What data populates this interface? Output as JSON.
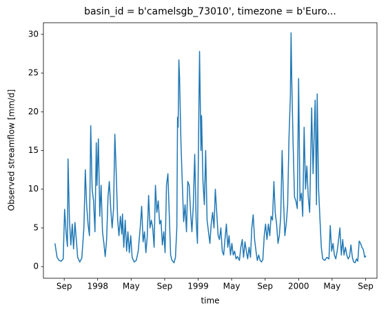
{
  "chart_data": {
    "type": "line",
    "title": "basin_id = b'camelsgb_73010', timezone = b'Euro...",
    "x_label": "time",
    "y_label": "Observed streamflow [mm/d]",
    "color": "#1f77b4",
    "xlim": [
      1997.46,
      2000.78
    ],
    "ylim": [
      -1.5,
      31.5
    ],
    "xticks": [
      {
        "value": 1997.667,
        "label": "Sep"
      },
      {
        "value": 1998,
        "label": "1998"
      },
      {
        "value": 1998.333,
        "label": "May"
      },
      {
        "value": 1998.667,
        "label": "Sep"
      },
      {
        "value": 1999,
        "label": "1999"
      },
      {
        "value": 1999.333,
        "label": "May"
      },
      {
        "value": 1999.667,
        "label": "Sep"
      },
      {
        "value": 2000,
        "label": "2000"
      },
      {
        "value": 2000.333,
        "label": "May"
      },
      {
        "value": 2000.667,
        "label": "Sep"
      }
    ],
    "yticks": [
      0,
      5,
      10,
      15,
      20,
      25,
      30
    ],
    "x": [
      1997.575,
      1997.596,
      1997.616,
      1997.637,
      1997.657,
      1997.671,
      1997.685,
      1997.699,
      1997.705,
      1997.719,
      1997.733,
      1997.747,
      1997.76,
      1997.774,
      1997.788,
      1997.801,
      1997.822,
      1997.842,
      1997.863,
      1997.877,
      1997.89,
      1997.904,
      1997.918,
      1997.931,
      1997.945,
      1997.959,
      1997.973,
      1997.986,
      1997.993,
      1998.007,
      1998.021,
      1998.034,
      1998.048,
      1998.062,
      1998.075,
      1998.089,
      1998.103,
      1998.116,
      1998.13,
      1998.144,
      1998.158,
      1998.171,
      1998.185,
      1998.199,
      1998.212,
      1998.226,
      1998.24,
      1998.247,
      1998.26,
      1998.274,
      1998.288,
      1998.301,
      1998.315,
      1998.329,
      1998.343,
      1998.363,
      1998.384,
      1998.404,
      1998.425,
      1998.438,
      1998.452,
      1998.466,
      1998.48,
      1998.493,
      1998.507,
      1998.521,
      1998.534,
      1998.548,
      1998.562,
      1998.575,
      1998.589,
      1998.603,
      1998.617,
      1998.63,
      1998.644,
      1998.658,
      1998.671,
      1998.685,
      1998.699,
      1998.712,
      1998.726,
      1998.74,
      1998.76,
      1998.774,
      1998.788,
      1998.795,
      1998.801,
      1998.808,
      1998.815,
      1998.829,
      1998.843,
      1998.856,
      1998.87,
      1998.884,
      1998.897,
      1998.911,
      1998.925,
      1998.938,
      1998.952,
      1998.966,
      1998.98,
      1998.993,
      1999.007,
      1999.014,
      1999.028,
      1999.034,
      1999.048,
      1999.062,
      1999.075,
      1999.089,
      1999.103,
      1999.117,
      1999.13,
      1999.144,
      1999.158,
      1999.171,
      1999.185,
      1999.199,
      1999.212,
      1999.226,
      1999.24,
      1999.254,
      1999.267,
      1999.281,
      1999.295,
      1999.308,
      1999.322,
      1999.336,
      1999.349,
      1999.363,
      1999.377,
      1999.391,
      1999.411,
      1999.425,
      1999.439,
      1999.452,
      1999.466,
      1999.48,
      1999.493,
      1999.507,
      1999.521,
      1999.534,
      1999.548,
      1999.562,
      1999.576,
      1999.589,
      1999.603,
      1999.617,
      1999.63,
      1999.644,
      1999.658,
      1999.671,
      1999.685,
      1999.699,
      1999.713,
      1999.726,
      1999.74,
      1999.754,
      1999.767,
      1999.781,
      1999.795,
      1999.808,
      1999.822,
      1999.836,
      1999.85,
      1999.863,
      1999.877,
      1999.891,
      1999.904,
      1999.918,
      1999.925,
      1999.932,
      1999.945,
      1999.959,
      1999.973,
      1999.987,
      2000.0,
      2000.014,
      2000.028,
      2000.041,
      2000.055,
      2000.069,
      2000.082,
      2000.096,
      2000.11,
      2000.124,
      2000.13,
      2000.144,
      2000.158,
      2000.165,
      2000.178,
      2000.185,
      2000.199,
      2000.213,
      2000.226,
      2000.24,
      2000.261,
      2000.281,
      2000.302,
      2000.315,
      2000.329,
      2000.343,
      2000.356,
      2000.37,
      2000.384,
      2000.398,
      2000.411,
      2000.425,
      2000.439,
      2000.452,
      2000.466,
      2000.48,
      2000.493,
      2000.507,
      2000.521,
      2000.535,
      2000.548,
      2000.562,
      2000.576,
      2000.589,
      2000.603,
      2000.617,
      2000.63,
      2000.644,
      2000.658,
      2000.671
    ],
    "values": [
      3.0,
      1.2,
      0.8,
      0.7,
      1.0,
      7.4,
      4.5,
      2.6,
      13.9,
      6.0,
      2.8,
      5.5,
      2.3,
      5.7,
      3.4,
      1.2,
      0.6,
      1.1,
      5.0,
      12.5,
      8.0,
      5.5,
      4.0,
      18.2,
      10.0,
      8.5,
      4.5,
      16.0,
      10.5,
      16.5,
      6.5,
      10.5,
      4.5,
      3.0,
      1.3,
      3.5,
      9.0,
      11.0,
      7.5,
      5.0,
      7.5,
      17.1,
      12.0,
      6.0,
      4.0,
      6.5,
      4.2,
      6.8,
      2.5,
      6.0,
      2.0,
      4.5,
      1.8,
      4.0,
      1.2,
      0.6,
      0.8,
      2.0,
      5.3,
      7.8,
      3.2,
      4.5,
      1.8,
      3.8,
      9.2,
      5.0,
      6.0,
      5.0,
      2.5,
      10.5,
      7.0,
      8.5,
      5.5,
      6.0,
      2.8,
      4.5,
      1.8,
      10.5,
      12.0,
      7.0,
      1.5,
      0.8,
      0.5,
      1.2,
      5.0,
      19.3,
      18.0,
      26.7,
      24.5,
      16.0,
      10.5,
      5.8,
      8.0,
      4.5,
      11.0,
      10.5,
      7.0,
      4.5,
      8.0,
      14.5,
      6.0,
      3.0,
      20.0,
      27.8,
      15.0,
      19.5,
      11.0,
      8.0,
      15.0,
      6.0,
      4.5,
      3.0,
      5.5,
      7.0,
      5.0,
      10.0,
      7.0,
      4.0,
      3.5,
      5.0,
      2.0,
      1.5,
      3.5,
      5.5,
      2.5,
      4.0,
      1.5,
      3.0,
      1.5,
      2.0,
      1.0,
      1.3,
      0.8,
      2.5,
      3.5,
      1.2,
      3.2,
      2.0,
      1.0,
      2.5,
      1.2,
      5.0,
      6.7,
      3.5,
      2.0,
      0.8,
      1.5,
      0.8,
      0.6,
      0.9,
      4.0,
      5.5,
      3.5,
      5.5,
      4.0,
      6.5,
      6.0,
      11.0,
      7.0,
      5.5,
      3.0,
      4.0,
      6.5,
      15.0,
      8.5,
      4.0,
      5.5,
      8.0,
      16.5,
      22.0,
      30.2,
      24.0,
      16.0,
      9.0,
      8.5,
      7.5,
      24.3,
      8.5,
      9.5,
      6.5,
      18.0,
      10.0,
      13.0,
      9.0,
      7.0,
      16.5,
      20.5,
      12.0,
      18.5,
      21.5,
      8.0,
      22.3,
      10.0,
      6.0,
      2.5,
      1.0,
      0.8,
      1.2,
      1.0,
      5.3,
      2.0,
      3.0,
      1.5,
      1.0,
      2.0,
      3.5,
      5.0,
      1.5,
      3.5,
      1.5,
      2.5,
      1.5,
      1.0,
      1.3,
      2.8,
      1.2,
      0.6,
      0.5,
      1.0,
      0.7,
      3.3,
      3.0,
      2.5,
      2.2,
      1.2,
      1.4
    ]
  }
}
